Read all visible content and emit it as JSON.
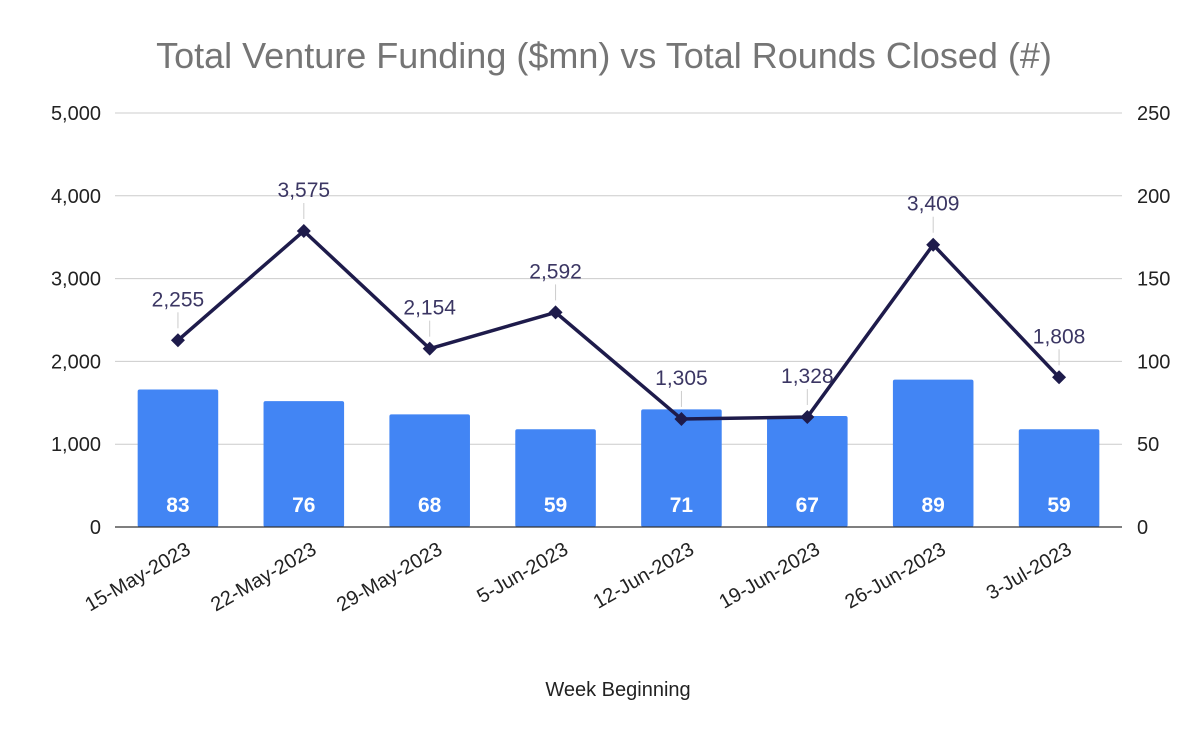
{
  "chart_data": {
    "type": "bar",
    "title": "Total Venture Funding ($mn) vs Total Rounds Closed (#)",
    "xlabel": "Week Beginning",
    "categories": [
      "15-May-2023",
      "22-May-2023",
      "29-May-2023",
      "5-Jun-2023",
      "12-Jun-2023",
      "19-Jun-2023",
      "26-Jun-2023",
      "3-Jul-2023"
    ],
    "bar_axis_ticks": [
      "0",
      "1,000",
      "2,000",
      "3,000",
      "4,000",
      "5,000"
    ],
    "line_axis_ticks": [
      "0",
      "50",
      "100",
      "150",
      "200",
      "250"
    ],
    "series": [
      {
        "name": "Total Rounds Closed (#)",
        "kind": "bar",
        "values": [
          83,
          76,
          68,
          59,
          71,
          67,
          89,
          59
        ],
        "labels": [
          "83",
          "76",
          "68",
          "59",
          "71",
          "67",
          "89",
          "59"
        ],
        "color": "#4285f4"
      },
      {
        "name": "Total Venture Funding ($mn)",
        "kind": "line",
        "values": [
          2255,
          3575,
          2154,
          2592,
          1305,
          1328,
          3409,
          1808
        ],
        "labels": [
          "2,255",
          "3,575",
          "2,154",
          "2,592",
          "1,305",
          "1,328",
          "3,409",
          "1,808"
        ],
        "color": "#1e1b4b",
        "label_color": "#3b3663"
      }
    ],
    "ylim": [
      0,
      5000
    ],
    "y2lim": [
      0,
      250
    ],
    "grid": true,
    "legend": "none"
  }
}
